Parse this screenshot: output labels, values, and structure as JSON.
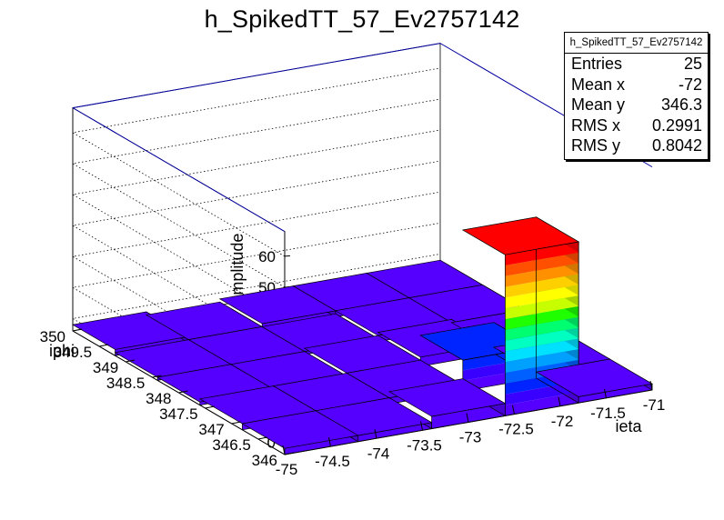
{
  "title": "h_SpikedTT_57_Ev2757142",
  "stats": {
    "name": "h_SpikedTT_57_Ev2757142",
    "rows": [
      {
        "label": "Entries",
        "value": "25"
      },
      {
        "label": "Mean x",
        "value": "-72"
      },
      {
        "label": "Mean y",
        "value": "346.3"
      },
      {
        "label": "RMS x",
        "value": "0.2991"
      },
      {
        "label": "RMS y",
        "value": "0.8042"
      }
    ]
  },
  "chart_data": {
    "type": "lego",
    "title": "h_SpikedTT_57_Ev2757142",
    "xlabel": "ieta",
    "ylabel": "iphi",
    "zlabel": "amplitude",
    "xlim": [
      -75,
      -71
    ],
    "ylim": [
      346,
      350
    ],
    "zlim": [
      -4,
      68
    ],
    "x_ticks": [
      "-75",
      "-74.5",
      "-74",
      "-73.5",
      "-73",
      "-72.5",
      "-72",
      "-71.5",
      "-71"
    ],
    "y_ticks": [
      "346",
      "346.5",
      "347",
      "347.5",
      "348",
      "348.5",
      "349",
      "349.5",
      "350"
    ],
    "z_ticks": [
      "0",
      "10",
      "20",
      "30",
      "40",
      "50",
      "60"
    ],
    "x_bin_edges": [
      -75,
      -74.2,
      -73.4,
      -72.6,
      -71.8,
      -71
    ],
    "y_bin_edges": [
      346,
      346.8,
      347.6,
      348.4,
      349.2,
      350
    ],
    "z_values": [
      [
        -2,
        -2,
        -3,
        -3,
        -2
      ],
      [
        -2,
        -2,
        -3,
        -3,
        -3
      ],
      [
        0,
        -2,
        -2,
        -3,
        -2
      ],
      [
        48,
        6,
        -1,
        -2,
        -2
      ],
      [
        -2,
        -2,
        -2,
        -2,
        -2
      ]
    ],
    "colors": {
      "palette": [
        "#5500ff",
        "#3a00ff",
        "#0024ff",
        "#0060ff",
        "#00a0ff",
        "#00e0ff",
        "#00ffc0",
        "#00ff70",
        "#20ff00",
        "#80ff00",
        "#c8ff00",
        "#ffff00",
        "#ffd000",
        "#ff9000",
        "#ff5000",
        "#ff0000"
      ],
      "frame": "#0000a0",
      "grid": "#000000"
    }
  }
}
